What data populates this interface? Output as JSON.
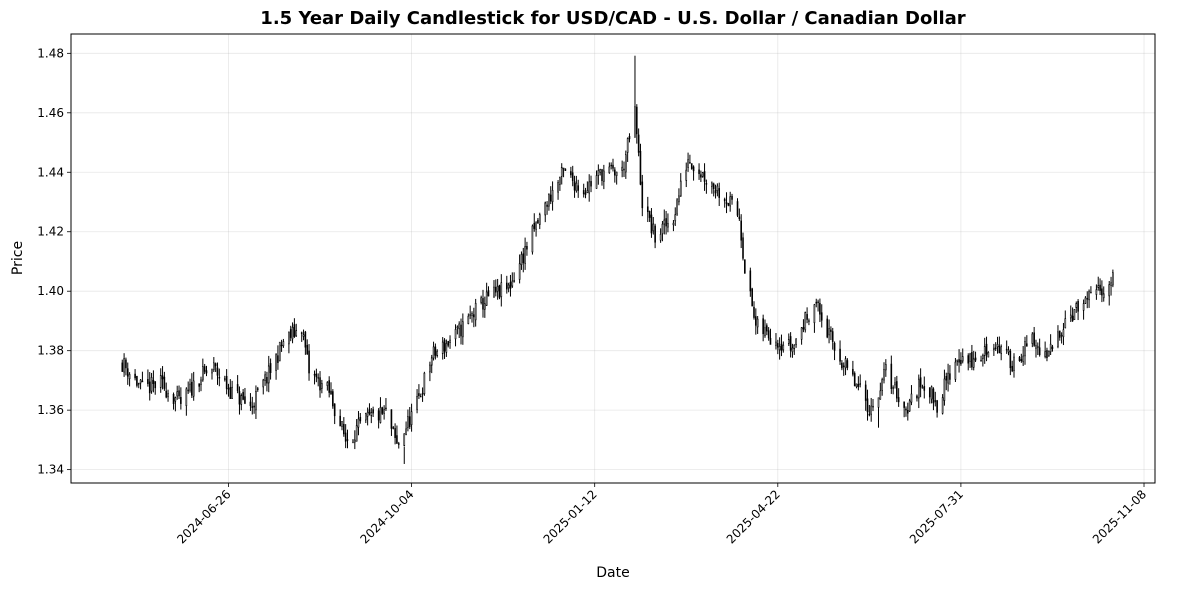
{
  "chart_data": {
    "type": "candlestick",
    "title": "1.5 Year Daily Candlestick for USD/CAD - U.S. Dollar / Canadian Dollar",
    "xlabel": "Date",
    "ylabel": "Price",
    "grid": true,
    "xlim": [
      "2024-04-01",
      "2025-11-14"
    ],
    "ylim": [
      1.3355,
      1.4865
    ],
    "x_ticks": [
      "2024-06-26",
      "2024-10-04",
      "2025-01-12",
      "2025-04-22",
      "2025-07-31",
      "2025-11-08"
    ],
    "y_ticks": [
      "1.34",
      "1.36",
      "1.38",
      "1.40",
      "1.42",
      "1.44",
      "1.46",
      "1.48"
    ],
    "start_date": "2024-04-29",
    "end_date": "2025-10-22",
    "close_anchors": [
      [
        "2024-04-29",
        1.376
      ],
      [
        "2024-05-10",
        1.367
      ],
      [
        "2024-05-20",
        1.369
      ],
      [
        "2024-05-31",
        1.362
      ],
      [
        "2024-06-10",
        1.371
      ],
      [
        "2024-06-18",
        1.374
      ],
      [
        "2024-06-28",
        1.366
      ],
      [
        "2024-07-08",
        1.361
      ],
      [
        "2024-07-18",
        1.372
      ],
      [
        "2024-07-26",
        1.383
      ],
      [
        "2024-08-05",
        1.388
      ],
      [
        "2024-08-09",
        1.373
      ],
      [
        "2024-08-20",
        1.366
      ],
      [
        "2024-08-29",
        1.35
      ],
      [
        "2024-09-10",
        1.357
      ],
      [
        "2024-09-20",
        1.359
      ],
      [
        "2024-09-26",
        1.348
      ],
      [
        "2024-10-07",
        1.362
      ],
      [
        "2024-10-15",
        1.378
      ],
      [
        "2024-10-28",
        1.385
      ],
      [
        "2024-11-06",
        1.392
      ],
      [
        "2024-11-15",
        1.398
      ],
      [
        "2024-11-26",
        1.401
      ],
      [
        "2024-12-06",
        1.415
      ],
      [
        "2024-12-17",
        1.43
      ],
      [
        "2024-12-26",
        1.44
      ],
      [
        "2025-01-06",
        1.434
      ],
      [
        "2025-01-16",
        1.44
      ],
      [
        "2025-01-27",
        1.44
      ],
      [
        "2025-02-03",
        1.46
      ],
      [
        "2025-02-07",
        1.43
      ],
      [
        "2025-02-14",
        1.418
      ],
      [
        "2025-02-24",
        1.425
      ],
      [
        "2025-03-04",
        1.445
      ],
      [
        "2025-03-14",
        1.438
      ],
      [
        "2025-03-24",
        1.432
      ],
      [
        "2025-04-01",
        1.425
      ],
      [
        "2025-04-04",
        1.408
      ],
      [
        "2025-04-10",
        1.388
      ],
      [
        "2025-04-21",
        1.384
      ],
      [
        "2025-04-30",
        1.381
      ],
      [
        "2025-05-12",
        1.397
      ],
      [
        "2025-05-22",
        1.382
      ],
      [
        "2025-06-02",
        1.37
      ],
      [
        "2025-06-12",
        1.36
      ],
      [
        "2025-06-20",
        1.373
      ],
      [
        "2025-07-01",
        1.36
      ],
      [
        "2025-07-10",
        1.37
      ],
      [
        "2025-07-18",
        1.362
      ],
      [
        "2025-07-29",
        1.378
      ],
      [
        "2025-08-08",
        1.376
      ],
      [
        "2025-08-18",
        1.383
      ],
      [
        "2025-08-28",
        1.376
      ],
      [
        "2025-09-08",
        1.383
      ],
      [
        "2025-09-16",
        1.377
      ],
      [
        "2025-09-26",
        1.391
      ],
      [
        "2025-10-07",
        1.396
      ],
      [
        "2025-10-16",
        1.401
      ],
      [
        "2025-10-22",
        1.404
      ]
    ],
    "extreme_wicks": [
      [
        "2025-02-03",
        1.4792,
        1.4555
      ],
      [
        "2024-09-30",
        1.3478,
        1.3419
      ],
      [
        "2025-06-16",
        1.361,
        1.3541
      ]
    ]
  }
}
